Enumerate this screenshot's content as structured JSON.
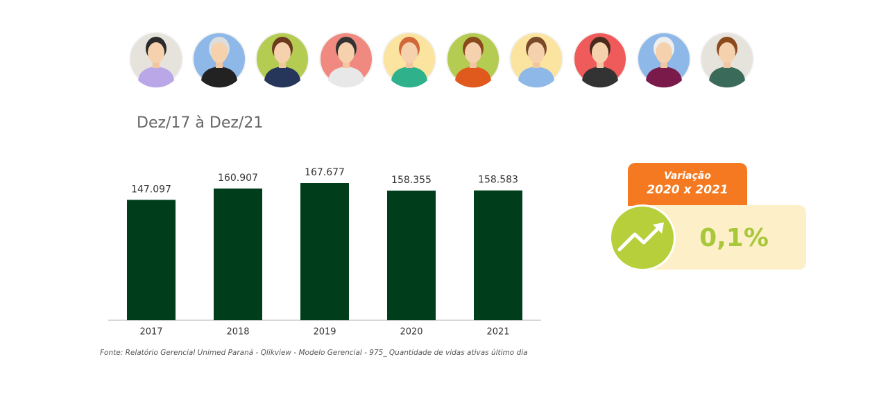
{
  "subtitle": "Dez/17 à Dez/21",
  "chart_data": {
    "type": "bar",
    "categories": [
      "2017",
      "2018",
      "2019",
      "2020",
      "2021"
    ],
    "values": [
      147097,
      160907,
      167677,
      158355,
      158583
    ],
    "value_labels": [
      "147.097",
      "160.907",
      "167.677",
      "158.355",
      "158.583"
    ],
    "color": "#003d1b"
  },
  "source": "Fonte: Relatório Gerencial Unimed Paraná - Qlikview - Modelo Gerencial - 975_ Quantidade de vidas ativas último dia",
  "variation": {
    "title": "Variação",
    "period": "2020 x 2021",
    "value_label": "0,1%"
  }
}
